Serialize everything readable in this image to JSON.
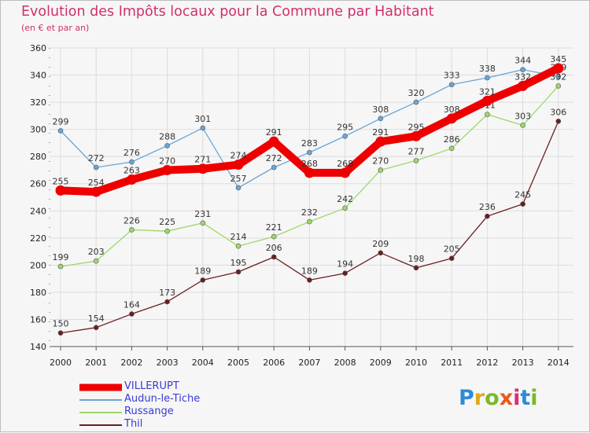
{
  "header": {
    "title": "Evolution des Impôts locaux pour la Commune par Habitant",
    "subtitle": "(en € et par an)"
  },
  "chart_data": {
    "type": "line",
    "categories": [
      "2000",
      "2001",
      "2002",
      "2003",
      "2004",
      "2005",
      "2006",
      "2007",
      "2008",
      "2009",
      "2010",
      "2011",
      "2012",
      "2013",
      "2014"
    ],
    "ylim": [
      140,
      360
    ],
    "yticks": [
      140,
      160,
      180,
      200,
      220,
      240,
      260,
      280,
      300,
      320,
      340,
      360
    ],
    "grid": true,
    "legend_position": "bottom-left",
    "series": [
      {
        "name": "Audun-le-Tiche",
        "color": "#6aa6d6",
        "values": [
          299,
          272,
          276,
          288,
          301,
          257,
          272,
          283,
          295,
          308,
          320,
          333,
          338,
          344,
          339
        ]
      },
      {
        "name": "Russange",
        "color": "#9ed86a",
        "values": [
          199,
          203,
          226,
          225,
          231,
          214,
          221,
          232,
          242,
          270,
          277,
          286,
          311,
          303,
          332
        ]
      },
      {
        "name": "Thil",
        "color": "#6b1e22",
        "values": [
          150,
          154,
          164,
          173,
          189,
          195,
          206,
          189,
          194,
          209,
          198,
          205,
          236,
          245,
          306
        ]
      },
      {
        "name": "VILLERUPT",
        "color": "#ee0000",
        "values": [
          255,
          254,
          263,
          270,
          271,
          274,
          291,
          268,
          268,
          291,
          295,
          308,
          321,
          332,
          345
        ]
      }
    ]
  },
  "legend": {
    "items": [
      {
        "name": "VILLERUPT",
        "color": "#ee0000"
      },
      {
        "name": "Audun-le-Tiche",
        "color": "#6aa6d6"
      },
      {
        "name": "Russange",
        "color": "#9ed86a"
      },
      {
        "name": "Thil",
        "color": "#6b1e22"
      }
    ]
  },
  "logo": {
    "text": "Proxiti"
  }
}
